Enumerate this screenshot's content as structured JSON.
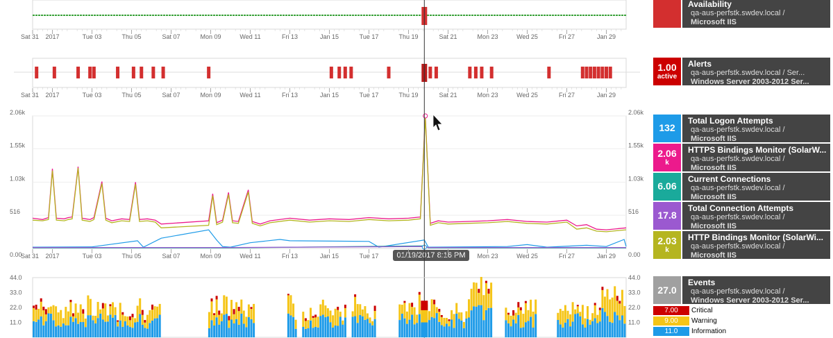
{
  "colors": {
    "availability": "#d32f2f",
    "alerts": "#d32f2f",
    "logon": "#1e9be8",
    "https": "#ec1a8c",
    "current": "#1aaa9b",
    "total_conn": "#9b59d0",
    "http": "#b5b520",
    "events_total": "#a0a0a0",
    "critical": "#cc0000",
    "warning": "#f5c518",
    "information": "#1e9be8",
    "panel_bg": "#444444",
    "green_line": "#3aa23a"
  },
  "tooltip": "01/19/2017 8:16 PM",
  "legend": {
    "availability": {
      "value": "",
      "name": "Availability",
      "host": "qa-aus-perfstk.swdev.local /",
      "app": "Microsoft IIS"
    },
    "alerts": {
      "value": "1.00",
      "unit": "active",
      "name": "Alerts",
      "host": "qa-aus-perfstk.swdev.local / Ser...",
      "app": "Windows Server 2003-2012 Ser..."
    },
    "metrics": [
      {
        "value": "132",
        "unit": "",
        "name": "Total Logon Attempts",
        "host": "qa-aus-perfstk.swdev.local /",
        "app": "Microsoft IIS"
      },
      {
        "value": "2.06",
        "unit": "k",
        "name": "HTTPS Bindings Monitor (SolarW...",
        "host": "qa-aus-perfstk.swdev.local /",
        "app": "Microsoft IIS"
      },
      {
        "value": "6.06",
        "unit": "",
        "name": "Current Connections",
        "host": "qa-aus-perfstk.swdev.local /",
        "app": "Microsoft IIS"
      },
      {
        "value": "17.8",
        "unit": "",
        "name": "Total Connection Attempts",
        "host": "qa-aus-perfstk.swdev.local /",
        "app": "Microsoft IIS"
      },
      {
        "value": "2.03",
        "unit": "k",
        "name": "HTTP Bindings Monitor (SolarWi...",
        "host": "qa-aus-perfstk.swdev.local /",
        "app": "Microsoft IIS"
      }
    ],
    "events": {
      "value": "27.0",
      "name": "Events",
      "host": "qa-aus-perfstk.swdev.local /",
      "app": "Windows Server 2003-2012 Ser...",
      "rows": [
        {
          "value": "7.00",
          "label": "Critical"
        },
        {
          "value": "9.00",
          "label": "Warning"
        },
        {
          "value": "11.0",
          "label": "Information"
        }
      ]
    }
  },
  "chart_data": [
    {
      "type": "line",
      "title": "Availability",
      "x_ticks": [
        "Sat 31",
        "2017",
        "Tue 03",
        "Thu 05",
        "Sat 07",
        "Mon 09",
        "Wed 11",
        "Fri 13",
        "Jan 15",
        "Tue 17",
        "Thu 19",
        "Sat 21",
        "Mon 23",
        "Wed 25",
        "Fri 27",
        "Jan 29"
      ],
      "x_range_days": [
        0,
        30
      ],
      "status": "up",
      "down_at_day": 19.8
    },
    {
      "type": "bar",
      "title": "Alerts",
      "x_ticks": [
        "Sat 31",
        "2017",
        "Tue 03",
        "Thu 05",
        "Sat 07",
        "Mon 09",
        "Wed 11",
        "Fri 13",
        "Jan 15",
        "Tue 17",
        "Thu 19",
        "Sat 21",
        "Mon 23",
        "Wed 25",
        "Fri 27",
        "Jan 29"
      ],
      "alert_days": [
        0.2,
        1.1,
        2.3,
        2.9,
        3.1,
        4.3,
        5.1,
        5.5,
        6.1,
        6.6,
        8.9,
        15.1,
        15.5,
        15.8,
        16.1,
        18.0,
        19.8,
        20.1,
        20.4,
        22.1,
        22.4,
        22.7,
        23.2,
        26.1,
        27.8,
        28.0,
        28.2,
        28.4,
        28.6,
        28.8,
        29.0,
        29.2
      ]
    },
    {
      "type": "line",
      "x_ticks": [
        "Sat 31",
        "2017",
        "Tue 03",
        "Thu 05",
        "Sat 07",
        "Mon 09",
        "Wed 11",
        "Fri 13",
        "Jan 15",
        "Tue 17",
        "Thu 19",
        "Sat 21",
        "Mon 23",
        "Wed 25",
        "Fri 27",
        "Jan 29"
      ],
      "y_ticks": [
        "0.00",
        "516",
        "1.03k",
        "1.55k",
        "2.06k"
      ],
      "ylim": [
        0,
        2060
      ],
      "series": [
        {
          "name": "HTTPS Bindings Monitor (SolarW...",
          "key": "https",
          "points": [
            [
              0,
              470
            ],
            [
              0.5,
              450
            ],
            [
              0.8,
              480
            ],
            [
              1,
              1240
            ],
            [
              1.2,
              470
            ],
            [
              1.6,
              460
            ],
            [
              1.8,
              480
            ],
            [
              2,
              490
            ],
            [
              2.3,
              1270
            ],
            [
              2.5,
              470
            ],
            [
              2.9,
              450
            ],
            [
              3.1,
              480
            ],
            [
              3.5,
              1040
            ],
            [
              3.7,
              470
            ],
            [
              4,
              430
            ],
            [
              4.5,
              460
            ],
            [
              4.9,
              450
            ],
            [
              5.2,
              1030
            ],
            [
              5.4,
              450
            ],
            [
              5.8,
              460
            ],
            [
              6.2,
              440
            ],
            [
              6.5,
              380
            ],
            [
              8.9,
              430
            ],
            [
              9.1,
              850
            ],
            [
              9.3,
              400
            ],
            [
              9.6,
              440
            ],
            [
              9.9,
              870
            ],
            [
              10.1,
              430
            ],
            [
              10.4,
              420
            ],
            [
              10.9,
              910
            ],
            [
              11.1,
              420
            ],
            [
              11.5,
              380
            ],
            [
              12,
              430
            ],
            [
              13,
              470
            ],
            [
              14,
              440
            ],
            [
              15,
              460
            ],
            [
              16,
              450
            ],
            [
              17,
              480
            ],
            [
              18,
              460
            ],
            [
              19,
              470
            ],
            [
              19.6,
              490
            ],
            [
              19.85,
              2060
            ],
            [
              20.1,
              390
            ],
            [
              20.5,
              430
            ],
            [
              21,
              410
            ],
            [
              22,
              420
            ],
            [
              23,
              430
            ],
            [
              24,
              450
            ],
            [
              25,
              420
            ],
            [
              26,
              410
            ],
            [
              27,
              440
            ],
            [
              27.5,
              350
            ],
            [
              28,
              370
            ],
            [
              28.5,
              300
            ],
            [
              29,
              290
            ],
            [
              30,
              320
            ]
          ]
        },
        {
          "name": "HTTP Bindings Monitor (SolarWi...",
          "key": "http",
          "points": [
            [
              0,
              440
            ],
            [
              0.5,
              430
            ],
            [
              0.8,
              450
            ],
            [
              1,
              1210
            ],
            [
              1.2,
              440
            ],
            [
              1.6,
              430
            ],
            [
              1.8,
              450
            ],
            [
              2,
              460
            ],
            [
              2.3,
              1250
            ],
            [
              2.5,
              440
            ],
            [
              2.9,
              420
            ],
            [
              3.1,
              450
            ],
            [
              3.5,
              1010
            ],
            [
              3.7,
              440
            ],
            [
              4,
              400
            ],
            [
              4.5,
              430
            ],
            [
              4.9,
              420
            ],
            [
              5.2,
              1000
            ],
            [
              5.4,
              420
            ],
            [
              5.8,
              430
            ],
            [
              6.2,
              410
            ],
            [
              6.5,
              320
            ],
            [
              8.9,
              360
            ],
            [
              9.1,
              820
            ],
            [
              9.3,
              370
            ],
            [
              9.6,
              410
            ],
            [
              9.9,
              840
            ],
            [
              10.1,
              400
            ],
            [
              10.4,
              390
            ],
            [
              10.9,
              880
            ],
            [
              11.1,
              390
            ],
            [
              11.5,
              350
            ],
            [
              12,
              400
            ],
            [
              13,
              440
            ],
            [
              14,
              410
            ],
            [
              15,
              430
            ],
            [
              16,
              420
            ],
            [
              17,
              450
            ],
            [
              18,
              430
            ],
            [
              19,
              440
            ],
            [
              19.6,
              460
            ],
            [
              19.85,
              2030
            ],
            [
              20.1,
              360
            ],
            [
              20.5,
              400
            ],
            [
              21,
              380
            ],
            [
              22,
              390
            ],
            [
              23,
              400
            ],
            [
              24,
              420
            ],
            [
              25,
              390
            ],
            [
              26,
              380
            ],
            [
              27,
              410
            ],
            [
              27.5,
              300
            ],
            [
              28,
              320
            ],
            [
              28.5,
              270
            ],
            [
              29,
              260
            ],
            [
              30,
              290
            ]
          ]
        },
        {
          "name": "Total Logon Attempts",
          "key": "logon",
          "points": [
            [
              0,
              20
            ],
            [
              3,
              25
            ],
            [
              5.3,
              120
            ],
            [
              5.6,
              20
            ],
            [
              6.5,
              160
            ],
            [
              8.9,
              290
            ],
            [
              9.3,
              130
            ],
            [
              9.6,
              30
            ],
            [
              10,
              20
            ],
            [
              11,
              90
            ],
            [
              12.5,
              140
            ],
            [
              13,
              120
            ],
            [
              17,
              110
            ],
            [
              17.5,
              20
            ],
            [
              19.8,
              132
            ],
            [
              20,
              20
            ],
            [
              24,
              30
            ],
            [
              25,
              60
            ],
            [
              26,
              20
            ],
            [
              28,
              50
            ],
            [
              29,
              30
            ],
            [
              29.9,
              140
            ],
            [
              30,
              30
            ]
          ]
        },
        {
          "name": "Current Connections",
          "key": "current",
          "points": [
            [
              0,
              10
            ],
            [
              10,
              10
            ],
            [
              19.8,
              40
            ],
            [
              20,
              10
            ],
            [
              30,
              10
            ]
          ]
        },
        {
          "name": "Total Connection Attempts",
          "key": "total_conn",
          "points": [
            [
              0,
              15
            ],
            [
              10,
              15
            ],
            [
              19.8,
              30
            ],
            [
              20,
              15
            ],
            [
              30,
              15
            ]
          ]
        }
      ]
    },
    {
      "type": "bar",
      "title": "Events",
      "y_ticks": [
        "11.0",
        "22.0",
        "33.0",
        "44.0"
      ],
      "ylim": [
        0,
        44
      ],
      "series_keys": [
        "information",
        "warning",
        "critical"
      ],
      "sample_days": 30,
      "bar_gaps": [
        [
          6.5,
          8.8
        ],
        [
          11.2,
          12.8
        ],
        [
          13.3,
          13.6
        ],
        [
          15.8,
          16.0
        ],
        [
          17.3,
          18.4
        ],
        [
          23.2,
          23.8
        ],
        [
          25.4,
          26.4
        ]
      ]
    }
  ]
}
